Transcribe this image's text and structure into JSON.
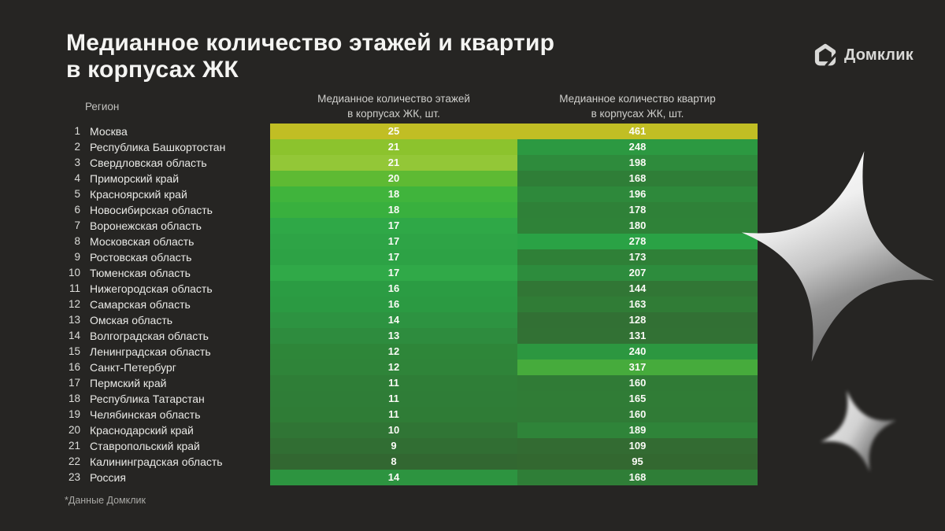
{
  "title": {
    "line1": "Медианное количество этажей и квартир",
    "line2": "в корпусах ЖК"
  },
  "logo": {
    "text": "Домклик"
  },
  "table": {
    "region_header": "Регион",
    "col1_header_line1": "Медианное количество этажей",
    "col1_header_line2": "в корпусах ЖК, шт.",
    "col2_header_line1": "Медианное количество квартир",
    "col2_header_line2": "в корпусах ЖК, шт."
  },
  "footnote": "*Данные Домклик",
  "colors": {
    "background": "#262523",
    "heat_high": "#c1be24",
    "heat_mid": "#2fa847",
    "heat_low": "#326731",
    "value_text": "#fbfbf7"
  },
  "chart_data": {
    "type": "heatmap",
    "title": "Медианное количество этажей и квартир в корпусах ЖК",
    "columns": [
      "Регион",
      "Медианное количество этажей в корпусах ЖК, шт.",
      "Медианное количество квартир в корпусах ЖК, шт."
    ],
    "legend": "цвет ячейки кодирует значение: тёмно-зелёный (мин) → жёлтый (макс)",
    "floors_range": [
      8,
      25
    ],
    "apartments_range": [
      95,
      461
    ],
    "rows": [
      {
        "rank": 1,
        "region": "Москва",
        "floors": 25,
        "apartments": 461,
        "floors_color": "#c1be24",
        "apartments_color": "#c1be24"
      },
      {
        "rank": 2,
        "region": "Республика Башкортостан",
        "floors": 21,
        "apartments": 248,
        "floors_color": "#8cc32d",
        "apartments_color": "#2c9941"
      },
      {
        "rank": 3,
        "region": "Свердловская область",
        "floors": 21,
        "apartments": 198,
        "floors_color": "#93c737",
        "apartments_color": "#2e8b3c"
      },
      {
        "rank": 4,
        "region": "Приморский край",
        "floors": 20,
        "apartments": 168,
        "floors_color": "#5eba33",
        "apartments_color": "#2f7e37"
      },
      {
        "rank": 5,
        "region": "Красноярский край",
        "floors": 18,
        "apartments": 196,
        "floors_color": "#40b43c",
        "apartments_color": "#2e893b"
      },
      {
        "rank": 6,
        "region": "Новосибирская область",
        "floors": 18,
        "apartments": 178,
        "floors_color": "#39b03e",
        "apartments_color": "#2f8138"
      },
      {
        "rank": 7,
        "region": "Воронежская область",
        "floors": 17,
        "apartments": 180,
        "floors_color": "#2fa847",
        "apartments_color": "#2f8238"
      },
      {
        "rank": 8,
        "region": "Московская область",
        "floors": 17,
        "apartments": 278,
        "floors_color": "#2ea446",
        "apartments_color": "#2aa245"
      },
      {
        "rank": 9,
        "region": "Ростовская область",
        "floors": 17,
        "apartments": 173,
        "floors_color": "#2da245",
        "apartments_color": "#2f8037"
      },
      {
        "rank": 10,
        "region": "Тюменская область",
        "floors": 17,
        "apartments": 207,
        "floors_color": "#30a948",
        "apartments_color": "#2d8c3d"
      },
      {
        "rank": 11,
        "region": "Нижегородская область",
        "floors": 16,
        "apartments": 144,
        "floors_color": "#2b9c43",
        "apartments_color": "#317635"
      },
      {
        "rank": 12,
        "region": "Самарская область",
        "floors": 16,
        "apartments": 163,
        "floors_color": "#2b9a42",
        "apartments_color": "#307c36"
      },
      {
        "rank": 13,
        "region": "Омская область",
        "floors": 14,
        "apartments": 128,
        "floors_color": "#2d9341",
        "apartments_color": "#327034"
      },
      {
        "rank": 14,
        "region": "Волгоградская область",
        "floors": 13,
        "apartments": 131,
        "floors_color": "#2e8c3e",
        "apartments_color": "#327134"
      },
      {
        "rank": 15,
        "region": "Ленинградская область",
        "floors": 12,
        "apartments": 240,
        "floors_color": "#2e8639",
        "apartments_color": "#2c9740"
      },
      {
        "rank": 16,
        "region": "Санкт-Петербург",
        "floors": 12,
        "apartments": 317,
        "floors_color": "#2f8439",
        "apartments_color": "#46ab3c"
      },
      {
        "rank": 17,
        "region": "Пермский край",
        "floors": 11,
        "apartments": 160,
        "floors_color": "#2f7e37",
        "apartments_color": "#307b36"
      },
      {
        "rank": 18,
        "region": "Республика Татарстан",
        "floors": 11,
        "apartments": 165,
        "floors_color": "#2f7d37",
        "apartments_color": "#307c36"
      },
      {
        "rank": 19,
        "region": "Челябинская область",
        "floors": 11,
        "apartments": 160,
        "floors_color": "#2f7c36",
        "apartments_color": "#307b36"
      },
      {
        "rank": 20,
        "region": "Краснодарский край",
        "floors": 10,
        "apartments": 189,
        "floors_color": "#307535",
        "apartments_color": "#2f8439"
      },
      {
        "rank": 21,
        "region": "Ставропольский край",
        "floors": 9,
        "apartments": 109,
        "floors_color": "#316e33",
        "apartments_color": "#336b32"
      },
      {
        "rank": 22,
        "region": "Калининградская область",
        "floors": 8,
        "apartments": 95,
        "floors_color": "#326731",
        "apartments_color": "#336830"
      },
      {
        "rank": 23,
        "region": "Россия",
        "floors": 14,
        "apartments": 168,
        "floors_color": "#2d9440",
        "apartments_color": "#2f7e37"
      }
    ]
  }
}
